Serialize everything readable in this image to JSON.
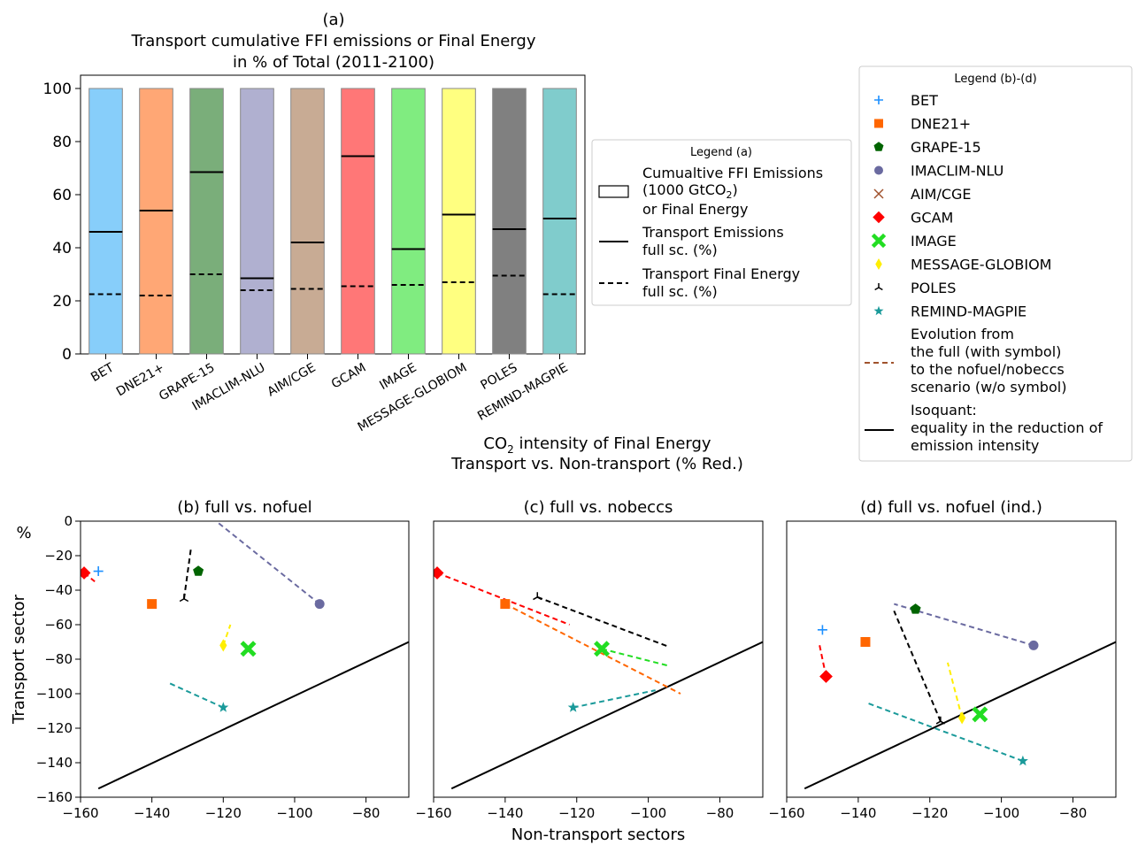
{
  "panel_a": {
    "caption": "(a)",
    "title_line1": "Transport cumulative FFI emissions or Final Energy",
    "title_line2": "in % of Total (2011-2100)"
  },
  "legend_a": {
    "title": "Legend (a)",
    "box_line1": "Cumualtive FFI Emissions",
    "box_line2_a": "(1000 GtCO",
    "box_line2_sub": "2",
    "box_line2_b": ")",
    "box_line3": "or Final Energy",
    "solid_line1": "Transport Emissions",
    "solid_line2": "full sc. (%)",
    "dashed_line1": "Transport Final Energy",
    "dashed_line2": "full sc. (%)"
  },
  "legend_b": {
    "title": "Legend (b)-(d)",
    "evolution_lines": [
      "Evolution from",
      "the full (with symbol)",
      "to the nofuel/nobeccs",
      "scenario (w/o symbol)"
    ],
    "isoquant_lines": [
      "Isoquant:",
      "equality in the reduction of",
      "emission intensity"
    ]
  },
  "mid_title": {
    "line1_a": "CO",
    "line1_sub": "2",
    "line1_b": " intensity of Final Energy",
    "line2": "Transport vs. Non-transport (% Red.)"
  },
  "colors": {
    "evolution_line": "#a0522d",
    "isoquant": "#000000"
  },
  "chart_data": [
    {
      "type": "bar",
      "categories": [
        "BET",
        "DNE21+",
        "GRAPE-15",
        "IMACLIM-NLU",
        "AIM/CGE",
        "GCAM",
        "IMAGE",
        "MESSAGE-GLOBIOM",
        "POLES",
        "REMIND-MAGPIE"
      ],
      "colors": [
        "#87cefa",
        "#ffa775",
        "#7aae7a",
        "#b0b0d0",
        "#c8ab94",
        "#ff7777",
        "#80ec80",
        "#ffff80",
        "#808080",
        "#80cccc"
      ],
      "values": [
        100,
        100,
        100,
        100,
        100,
        100,
        100,
        100,
        100,
        100
      ],
      "transport_emissions_full": [
        46,
        54,
        68.5,
        28.5,
        42,
        74.5,
        39.5,
        52.5,
        47,
        51
      ],
      "transport_final_energy_full": [
        22.5,
        22,
        30,
        24,
        24.5,
        25.5,
        26,
        27,
        29.5,
        22.5
      ],
      "ylim": [
        0,
        105
      ],
      "yticks": [
        0,
        20,
        40,
        60,
        80,
        100
      ]
    },
    {
      "type": "scatter",
      "title": "(b)  full vs. nofuel",
      "ylabel": "Transport sector",
      "unit_label": "%",
      "xlim": [
        -160,
        -68
      ],
      "ylim": [
        -160,
        0
      ],
      "xticks": [
        -160,
        -140,
        -120,
        -100,
        -80
      ],
      "yticks": [
        0,
        -20,
        -40,
        -60,
        -80,
        -100,
        -120,
        -140,
        -160
      ],
      "isoquant": [
        [
          -155,
          -155
        ],
        [
          -68,
          -70
        ]
      ],
      "points": [
        {
          "model": "BET",
          "full": [
            -155,
            -29
          ],
          "alt": null
        },
        {
          "model": "DNE21+",
          "full": [
            -140,
            -48
          ],
          "alt": null
        },
        {
          "model": "GRAPE-15",
          "full": [
            -127,
            -29
          ],
          "alt": null
        },
        {
          "model": "IMACLIM-NLU",
          "full": [
            -93,
            -48
          ],
          "alt": [
            -122,
            0
          ]
        },
        {
          "model": "GCAM",
          "full": [
            -159,
            -30
          ],
          "alt": [
            -156,
            -35
          ]
        },
        {
          "model": "IMAGE",
          "full": [
            -113,
            -74
          ],
          "alt": null
        },
        {
          "model": "MESSAGE-GLOBIOM",
          "full": [
            -120,
            -72
          ],
          "alt": [
            -118,
            -60
          ]
        },
        {
          "model": "POLES",
          "full": [
            -131,
            -45
          ],
          "alt": [
            -129,
            -15
          ]
        },
        {
          "model": "REMIND-MAGPIE",
          "full": [
            -120,
            -108
          ],
          "alt": [
            -135,
            -94
          ]
        }
      ]
    },
    {
      "type": "scatter",
      "title": "(c)  full vs. nobeccs",
      "xlabel": "Non-transport sectors",
      "xlim": [
        -160,
        -68
      ],
      "ylim": [
        -160,
        0
      ],
      "xticks": [
        -160,
        -140,
        -120,
        -100,
        -80
      ],
      "isoquant": [
        [
          -155,
          -155
        ],
        [
          -68,
          -70
        ]
      ],
      "points": [
        {
          "model": "DNE21+",
          "full": [
            -140,
            -48
          ],
          "alt": [
            -91,
            -100
          ]
        },
        {
          "model": "GCAM",
          "full": [
            -159,
            -30
          ],
          "alt": [
            -122,
            -60
          ]
        },
        {
          "model": "IMAGE",
          "full": [
            -113,
            -74
          ],
          "alt": [
            -94,
            -84
          ]
        },
        {
          "model": "POLES",
          "full": [
            -131,
            -44
          ],
          "alt": [
            -94,
            -73
          ]
        },
        {
          "model": "REMIND-MAGPIE",
          "full": [
            -121,
            -108
          ],
          "alt": [
            -98,
            -98
          ]
        }
      ]
    },
    {
      "type": "scatter",
      "title": "(d)  full vs. nofuel (ind.)",
      "xlim": [
        -160,
        -68
      ],
      "ylim": [
        -160,
        0
      ],
      "xticks": [
        -160,
        -140,
        -120,
        -100,
        -80
      ],
      "isoquant": [
        [
          -155,
          -155
        ],
        [
          -68,
          -70
        ]
      ],
      "points": [
        {
          "model": "BET",
          "full": [
            -150,
            -63
          ],
          "alt": null
        },
        {
          "model": "DNE21+",
          "full": [
            -138,
            -70
          ],
          "alt": null
        },
        {
          "model": "GRAPE-15",
          "full": [
            -124,
            -51
          ],
          "alt": null
        },
        {
          "model": "IMACLIM-NLU",
          "full": [
            -91,
            -72
          ],
          "alt": [
            -130,
            -48
          ]
        },
        {
          "model": "GCAM",
          "full": [
            -149,
            -90
          ],
          "alt": [
            -151,
            -70
          ]
        },
        {
          "model": "IMAGE",
          "full": [
            -106,
            -112
          ],
          "alt": null
        },
        {
          "model": "MESSAGE-GLOBIOM",
          "full": [
            -111,
            -114
          ],
          "alt": [
            -115,
            -82
          ]
        },
        {
          "model": "POLES",
          "full": [
            -117,
            -116
          ],
          "alt": [
            -130,
            -52
          ]
        },
        {
          "model": "REMIND-MAGPIE",
          "full": [
            -94,
            -139
          ],
          "alt": [
            -138,
            -105
          ]
        }
      ]
    }
  ],
  "models": [
    {
      "name": "BET",
      "color": "#1e90ff",
      "marker": "plus"
    },
    {
      "name": "DNE21+",
      "color": "#ff6600",
      "marker": "square"
    },
    {
      "name": "GRAPE-15",
      "color": "#006400",
      "marker": "pentagon"
    },
    {
      "name": "IMACLIM-NLU",
      "color": "#6a6aa0",
      "marker": "circle"
    },
    {
      "name": "AIM/CGE",
      "color": "#a0522d",
      "marker": "x"
    },
    {
      "name": "GCAM",
      "color": "#ff0000",
      "marker": "diamond"
    },
    {
      "name": "IMAGE",
      "color": "#22dd22",
      "marker": "bigx"
    },
    {
      "name": "MESSAGE-GLOBIOM",
      "color": "#ffee00",
      "marker": "diamond-thin"
    },
    {
      "name": "POLES",
      "color": "#000000",
      "marker": "tri"
    },
    {
      "name": "REMIND-MAGPIE",
      "color": "#1a9a9a",
      "marker": "star"
    }
  ]
}
